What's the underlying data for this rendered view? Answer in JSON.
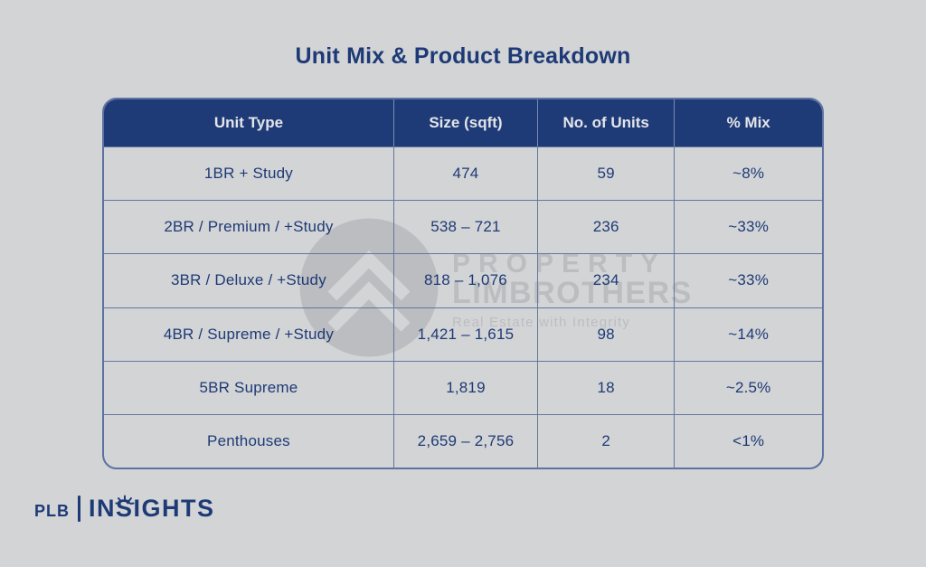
{
  "colors": {
    "background": "#d2d4d6",
    "navy": "#1e3a76",
    "header_bg": "#1f3b77",
    "header_text": "#e4e5e9",
    "border": "#64779f",
    "outer_border": "#5d72a2",
    "watermark_gray": "#97999f"
  },
  "title": "Unit Mix & Product Breakdown",
  "table": {
    "headers": [
      "Unit Type",
      "Size (sqft)",
      "No. of Units",
      "% Mix"
    ],
    "rows": [
      [
        "1BR + Study",
        "474",
        "59",
        "~8%"
      ],
      [
        "2BR / Premium / +Study",
        "538 – 721",
        "236",
        "~33%"
      ],
      [
        "3BR / Deluxe / +Study",
        "818 – 1,076",
        "234",
        "~33%"
      ],
      [
        "4BR / Supreme / +Study",
        "1,421 – 1,615",
        "98",
        "~14%"
      ],
      [
        "5BR Supreme",
        "1,819",
        "18",
        "~2.5%"
      ],
      [
        "Penthouses",
        "2,659 – 2,756",
        "2",
        "<1%"
      ]
    ]
  },
  "chart_data": {
    "type": "table",
    "title": "Unit Mix & Product Breakdown",
    "columns": [
      "Unit Type",
      "Size (sqft)",
      "No. of Units",
      "% Mix"
    ],
    "rows": [
      {
        "unit_type": "1BR + Study",
        "size_sqft": "474",
        "no_of_units": 59,
        "pct_mix": "~8%"
      },
      {
        "unit_type": "2BR / Premium / +Study",
        "size_sqft": "538 – 721",
        "no_of_units": 236,
        "pct_mix": "~33%"
      },
      {
        "unit_type": "3BR / Deluxe / +Study",
        "size_sqft": "818 – 1,076",
        "no_of_units": 234,
        "pct_mix": "~33%"
      },
      {
        "unit_type": "4BR / Supreme / +Study",
        "size_sqft": "1,421 – 1,615",
        "no_of_units": 98,
        "pct_mix": "~14%"
      },
      {
        "unit_type": "5BR Supreme",
        "size_sqft": "1,819",
        "no_of_units": 18,
        "pct_mix": "~2.5%"
      },
      {
        "unit_type": "Penthouses",
        "size_sqft": "2,659 – 2,756",
        "no_of_units": 2,
        "pct_mix": "<1%"
      }
    ]
  },
  "watermark": {
    "line1": "PROPERTY",
    "line2": "LIMBROTHERS",
    "tagline": "Real Estate with Integrity"
  },
  "footer": {
    "brand": "PLB",
    "product": "INSIGHTS"
  }
}
